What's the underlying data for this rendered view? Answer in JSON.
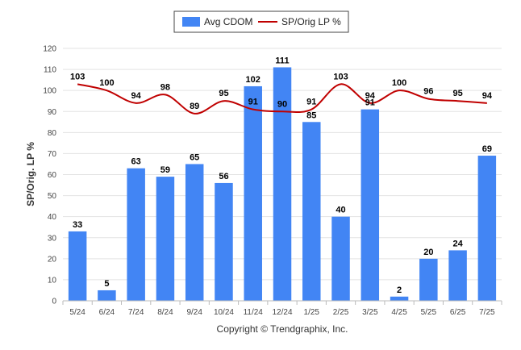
{
  "chart_data": {
    "type": "bar",
    "categories": [
      "5/24",
      "6/24",
      "7/24",
      "8/24",
      "9/24",
      "10/24",
      "11/24",
      "12/24",
      "1/25",
      "2/25",
      "3/25",
      "4/25",
      "5/25",
      "6/25",
      "7/25"
    ],
    "series": [
      {
        "name": "Avg CDOM",
        "type": "bar",
        "color": "#4285f4",
        "values": [
          33,
          5,
          63,
          59,
          65,
          56,
          102,
          111,
          85,
          40,
          91,
          2,
          20,
          24,
          69
        ]
      },
      {
        "name": "SP/Orig LP %",
        "type": "line",
        "color": "#c00000",
        "values": [
          103,
          100,
          94,
          98,
          89,
          95,
          91,
          90,
          91,
          103,
          94,
          100,
          96,
          95,
          94
        ]
      }
    ],
    "ylabel": "SP/Orig. LP %",
    "ylim": [
      0,
      120
    ],
    "yticks": [
      0,
      10,
      20,
      30,
      40,
      50,
      60,
      70,
      80,
      90,
      100,
      110,
      120
    ],
    "grid": true,
    "legend_position": "top-center"
  },
  "credit": "Copyright © Trendgraphix, Inc."
}
